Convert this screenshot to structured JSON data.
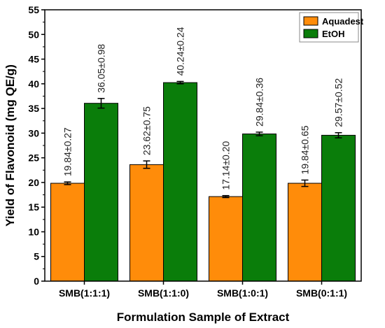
{
  "chart_data": {
    "type": "bar",
    "xlabel": "Formulation Sample of Extract",
    "ylabel": "Yield of Flavonoid (mg QE/g)",
    "ylim": [
      0,
      55
    ],
    "yticks": [
      0,
      5,
      10,
      15,
      20,
      25,
      30,
      35,
      40,
      45,
      50,
      55
    ],
    "categories": [
      "SMB(1:1:1)",
      "SMB(1:1:0)",
      "SMB(1:0:1)",
      "SMB(0:1:1)"
    ],
    "legend_position": "top-right",
    "grid": false,
    "series": [
      {
        "name": "Aquadest",
        "color": "#ff8c0a",
        "values": [
          19.84,
          23.62,
          17.14,
          19.84
        ],
        "errors": [
          0.27,
          0.75,
          0.2,
          0.65
        ],
        "labels": [
          "19.84±0.27",
          "23.62±0.75",
          "17.14±0.20",
          "19.84±0.65"
        ]
      },
      {
        "name": "EtOH",
        "color": "#0a7d0a",
        "values": [
          36.05,
          40.24,
          29.84,
          29.57
        ],
        "errors": [
          0.98,
          0.24,
          0.36,
          0.52
        ],
        "labels": [
          "36.05±0.98",
          "40.24±0.24",
          "29.84±0.36",
          "29.57±0.52"
        ]
      }
    ]
  }
}
